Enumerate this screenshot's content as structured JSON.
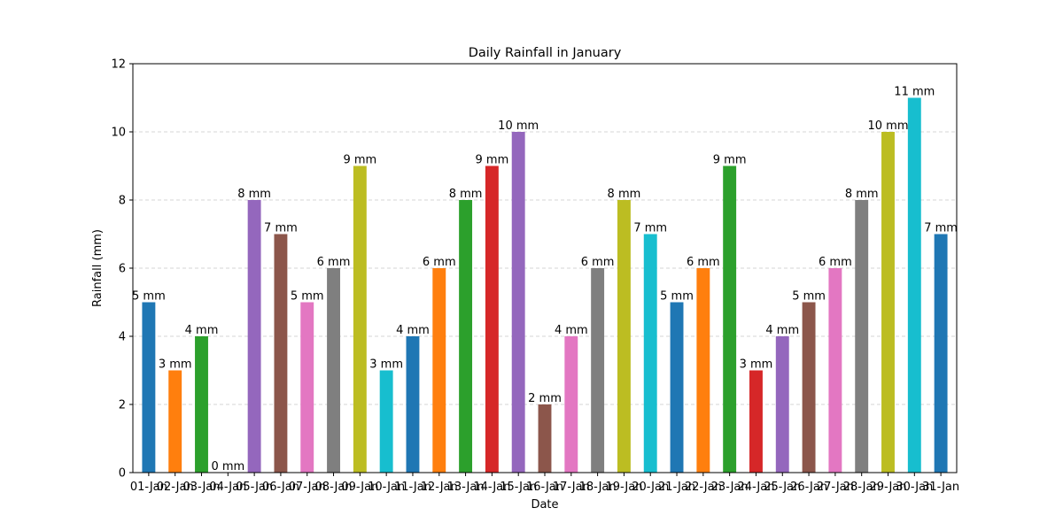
{
  "chart_data": {
    "type": "bar",
    "title": "Daily Rainfall in January",
    "xlabel": "Date",
    "ylabel": "Rainfall (mm)",
    "ylim": [
      0,
      12
    ],
    "yticks": [
      "0",
      "2",
      "4",
      "6",
      "8",
      "10",
      "12"
    ],
    "grid": "y-dashed",
    "categories": [
      "01-Jan",
      "02-Jan",
      "03-Jan",
      "04-Jan",
      "05-Jan",
      "06-Jan",
      "07-Jan",
      "08-Jan",
      "09-Jan",
      "10-Jan",
      "11-Jan",
      "12-Jan",
      "13-Jan",
      "14-Jan",
      "15-Jan",
      "16-Jan",
      "17-Jan",
      "18-Jan",
      "19-Jan",
      "20-Jan",
      "21-Jan",
      "22-Jan",
      "23-Jan",
      "24-Jan",
      "25-Jan",
      "26-Jan",
      "27-Jan",
      "28-Jan",
      "29-Jan",
      "30-Jan",
      "31-Jan"
    ],
    "values": [
      5,
      3,
      4,
      0,
      8,
      7,
      5,
      6,
      9,
      3,
      4,
      6,
      8,
      9,
      10,
      2,
      4,
      6,
      8,
      7,
      5,
      6,
      9,
      3,
      4,
      5,
      6,
      8,
      10,
      11,
      7
    ],
    "data_labels": [
      "5 mm",
      "3 mm",
      "4 mm",
      "0 mm",
      "8 mm",
      "7 mm",
      "5 mm",
      "6 mm",
      "9 mm",
      "3 mm",
      "4 mm",
      "6 mm",
      "8 mm",
      "9 mm",
      "10 mm",
      "2 mm",
      "4 mm",
      "6 mm",
      "8 mm",
      "7 mm",
      "5 mm",
      "6 mm",
      "9 mm",
      "3 mm",
      "4 mm",
      "5 mm",
      "6 mm",
      "8 mm",
      "10 mm",
      "11 mm",
      "7 mm"
    ],
    "colors": [
      "#1f77b4",
      "#ff7f0e",
      "#2ca02c",
      "#d62728",
      "#9467bd",
      "#8c564b",
      "#e377c2",
      "#7f7f7f",
      "#bcbd22",
      "#17becf"
    ]
  }
}
